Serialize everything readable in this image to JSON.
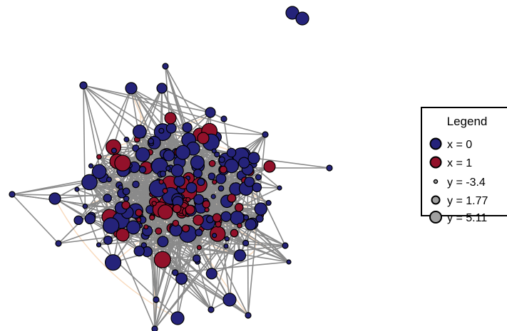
{
  "legend": {
    "title": "Legend",
    "items": [
      {
        "label": "x = 0",
        "color": "#25237a"
      },
      {
        "label": "x = 1",
        "color": "#92112a"
      },
      {
        "label": "y = -3.4",
        "color": "#a0a0a0"
      },
      {
        "label": "y = 1.77",
        "color": "#a0a0a0"
      },
      {
        "label": "y = 5.11",
        "color": "#a0a0a0"
      }
    ]
  },
  "colors": {
    "node_x0": "#25237a",
    "node_x1": "#92112a",
    "edge": "#8a8a8a",
    "edge_halo": "#f9dcc0",
    "node_outline": "#000000",
    "legend_size_fill": "#a0a0a0"
  },
  "network": {
    "node_groups": [
      "x = 0",
      "x = 1"
    ],
    "size_variable_values": [
      -3.4,
      1.77,
      5.11
    ]
  }
}
